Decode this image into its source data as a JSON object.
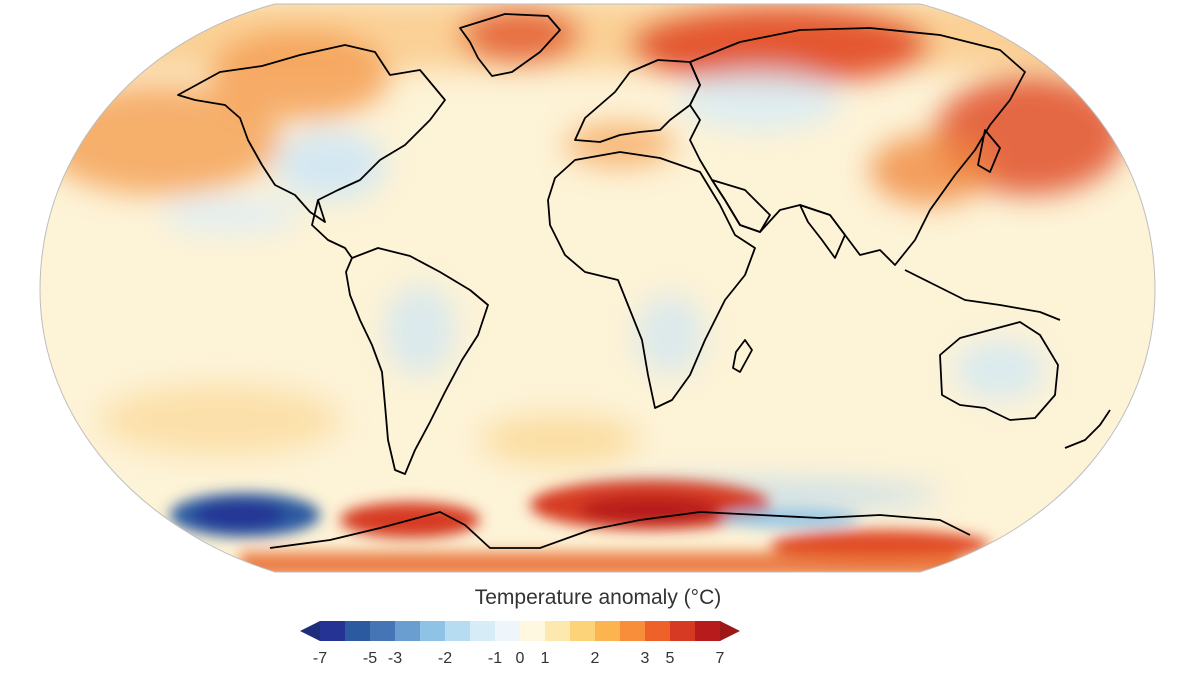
{
  "colorbar": {
    "title": "Temperature anomaly (°C)",
    "tick_labels": [
      "-7",
      "-5",
      "-3",
      "-2",
      "-1",
      "0",
      "1",
      "2",
      "3",
      "5",
      "7"
    ],
    "colors": [
      "#253494",
      "#2c5aa0",
      "#4575b4",
      "#6a9dd0",
      "#8ec3e6",
      "#b5dcf0",
      "#d6ecf7",
      "#eef6fb",
      "#fff8e1",
      "#fde9b0",
      "#fdd37a",
      "#fbb44f",
      "#f88e3a",
      "#ee6229",
      "#d63a22",
      "#b81b1b"
    ],
    "extend_low_color": "#1e2d7a",
    "extend_high_color": "#9e1616"
  },
  "map": {
    "projection": "robinson",
    "background_color": "#fdf3d7",
    "coastline_color": "#000000"
  }
}
